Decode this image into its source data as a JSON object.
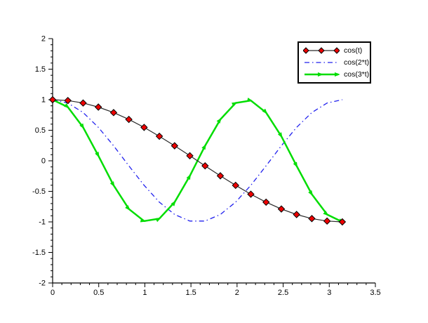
{
  "window": {
    "background": "#ffffff"
  },
  "chart_data": {
    "type": "line",
    "title": "",
    "xlabel": "",
    "ylabel": "",
    "xlim": [
      0,
      3.5
    ],
    "ylim": [
      -2,
      2
    ],
    "x_major_ticks": [
      0,
      0.5,
      1,
      1.5,
      2,
      2.5,
      3,
      3.5
    ],
    "x_tick_labels": [
      "0",
      "0.5",
      "1",
      "1.5",
      "2",
      "2.5",
      "3",
      "3.5"
    ],
    "y_major_ticks": [
      -2,
      -1.5,
      -1,
      -0.5,
      0,
      0.5,
      1,
      1.5,
      2
    ],
    "y_tick_labels": [
      "-2",
      "-1.5",
      "-1",
      "-0.5",
      "0",
      "0.5",
      "1",
      "1.5",
      "2"
    ],
    "minor_tick_step": 0.1,
    "grid": false,
    "legend_position": "upper-right",
    "axis_color": "#000000",
    "x": [
      0,
      0.1653,
      0.3307,
      0.496,
      0.6614,
      0.8267,
      0.9921,
      1.1574,
      1.3228,
      1.4881,
      1.6535,
      1.8188,
      1.9842,
      2.1495,
      2.3149,
      2.4802,
      2.6456,
      2.8109,
      2.9762,
      3.1416
    ],
    "series": [
      {
        "name": "cos(t)",
        "color": "#2a2a2a",
        "line_style": "solid",
        "line_width": 1.2,
        "marker": "diamond",
        "marker_fill": "#ee0000",
        "marker_edge": "#000000",
        "values": [
          1,
          0.9864,
          0.9458,
          0.8795,
          0.7891,
          0.6773,
          0.5469,
          0.4017,
          0.2455,
          0.0826,
          -0.0826,
          -0.2455,
          -0.4017,
          -0.5469,
          -0.6773,
          -0.7891,
          -0.8795,
          -0.9458,
          -0.9864,
          -1
        ]
      },
      {
        "name": "cos(2*t)",
        "color": "#2222ee",
        "line_style": "dash-dot",
        "line_width": 1.3,
        "marker": "none",
        "values": [
          1,
          0.9458,
          0.7891,
          0.5469,
          0.2455,
          -0.0826,
          -0.4017,
          -0.6773,
          -0.8795,
          -0.9864,
          -0.9864,
          -0.8795,
          -0.6773,
          -0.4017,
          -0.0826,
          0.2455,
          0.5469,
          0.7891,
          0.9458,
          1
        ]
      },
      {
        "name": "cos(3*t)",
        "color": "#00dd00",
        "line_style": "solid",
        "line_width": 2.5,
        "marker": "arrow",
        "values": [
          1,
          0.8795,
          0.5469,
          0.0826,
          -0.4017,
          -0.7891,
          -0.9864,
          -0.9458,
          -0.6773,
          -0.2455,
          0.2455,
          0.6773,
          0.9458,
          0.9864,
          0.7891,
          0.4017,
          -0.0826,
          -0.5469,
          -0.8795,
          -1
        ]
      }
    ]
  },
  "legend": {
    "entries": [
      "cos(t)",
      "cos(2*t)",
      "cos(3*t)"
    ]
  }
}
